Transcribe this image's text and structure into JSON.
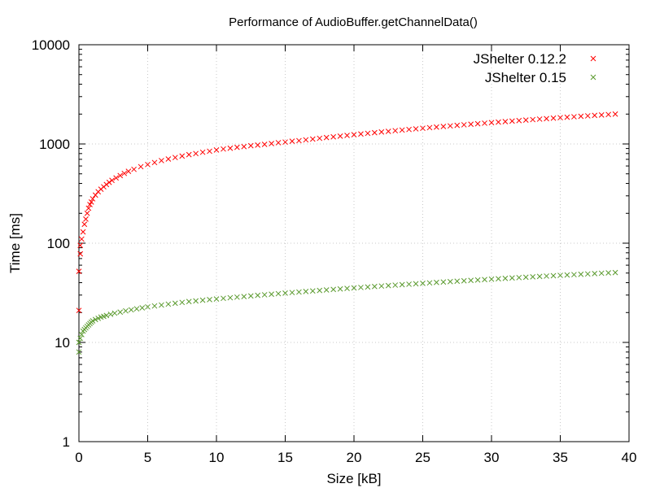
{
  "chart_data": {
    "type": "scatter",
    "title": "Performance of AudioBuffer.getChannelData()",
    "xlabel": "Size [kB]",
    "ylabel": "Time [ms]",
    "xlim": [
      0,
      40
    ],
    "ylim": [
      1,
      10000
    ],
    "yscale": "log",
    "grid": true,
    "legend": "top-right",
    "xticks": [
      "0",
      "5",
      "10",
      "15",
      "20",
      "25",
      "30",
      "35",
      "40"
    ],
    "yticks": [
      "1",
      "10",
      "100",
      "1000",
      "10000"
    ],
    "series": [
      {
        "name": "JShelter 0.12.2",
        "color": "#ff0000",
        "marker": "x",
        "points": [
          [
            0.0,
            21
          ],
          [
            0.0,
            52
          ],
          [
            0.1,
            78
          ],
          [
            0.1,
            95
          ],
          [
            0.2,
            110
          ],
          [
            0.3,
            130
          ],
          [
            0.4,
            155
          ],
          [
            0.5,
            175
          ],
          [
            0.6,
            200
          ],
          [
            0.7,
            225
          ],
          [
            0.8,
            245
          ],
          [
            0.9,
            260
          ],
          [
            1.0,
            280
          ],
          [
            1.2,
            305
          ],
          [
            1.4,
            330
          ],
          [
            1.6,
            350
          ],
          [
            1.8,
            370
          ],
          [
            2.0,
            390
          ],
          [
            2.2,
            410
          ],
          [
            2.4,
            430
          ],
          [
            2.7,
            455
          ],
          [
            3.0,
            480
          ],
          [
            3.3,
            505
          ],
          [
            3.6,
            530
          ],
          [
            4.0,
            555
          ],
          [
            4.5,
            590
          ],
          [
            5.0,
            620
          ],
          [
            5.5,
            650
          ],
          [
            6.0,
            680
          ],
          [
            6.5,
            705
          ],
          [
            7.0,
            730
          ],
          [
            7.5,
            755
          ],
          [
            8.0,
            780
          ],
          [
            8.5,
            800
          ],
          [
            9.0,
            825
          ],
          [
            9.5,
            845
          ],
          [
            10.0,
            870
          ],
          [
            10.5,
            890
          ],
          [
            11.0,
            905
          ],
          [
            11.5,
            925
          ],
          [
            12.0,
            940
          ],
          [
            12.5,
            960
          ],
          [
            13.0,
            975
          ],
          [
            13.5,
            990
          ],
          [
            14.0,
            1010
          ],
          [
            14.5,
            1030
          ],
          [
            15.0,
            1045
          ],
          [
            15.5,
            1065
          ],
          [
            16.0,
            1080
          ],
          [
            16.5,
            1100
          ],
          [
            17.0,
            1120
          ],
          [
            17.5,
            1140
          ],
          [
            18.0,
            1160
          ],
          [
            18.5,
            1180
          ],
          [
            19.0,
            1200
          ],
          [
            19.5,
            1220
          ],
          [
            20.0,
            1240
          ],
          [
            20.5,
            1260
          ],
          [
            21.0,
            1280
          ],
          [
            21.5,
            1300
          ],
          [
            22.0,
            1320
          ],
          [
            22.5,
            1340
          ],
          [
            23.0,
            1360
          ],
          [
            23.5,
            1380
          ],
          [
            24.0,
            1400
          ],
          [
            24.5,
            1420
          ],
          [
            25.0,
            1440
          ],
          [
            25.5,
            1460
          ],
          [
            26.0,
            1480
          ],
          [
            26.5,
            1500
          ],
          [
            27.0,
            1520
          ],
          [
            27.5,
            1540
          ],
          [
            28.0,
            1560
          ],
          [
            28.5,
            1580
          ],
          [
            29.0,
            1600
          ],
          [
            29.5,
            1620
          ],
          [
            30.0,
            1640
          ],
          [
            30.5,
            1660
          ],
          [
            31.0,
            1680
          ],
          [
            31.5,
            1700
          ],
          [
            32.0,
            1720
          ],
          [
            32.5,
            1740
          ],
          [
            33.0,
            1760
          ],
          [
            33.5,
            1780
          ],
          [
            34.0,
            1800
          ],
          [
            34.5,
            1820
          ],
          [
            35.0,
            1840
          ],
          [
            35.5,
            1860
          ],
          [
            36.0,
            1880
          ],
          [
            36.5,
            1900
          ],
          [
            37.0,
            1920
          ],
          [
            37.5,
            1940
          ],
          [
            38.0,
            1960
          ],
          [
            38.5,
            1980
          ],
          [
            39.0,
            2000
          ]
        ]
      },
      {
        "name": "JShelter 0.15",
        "color": "#5a9a2e",
        "marker": "x",
        "points": [
          [
            0.0,
            8
          ],
          [
            0.0,
            10
          ],
          [
            0.1,
            11
          ],
          [
            0.2,
            12
          ],
          [
            0.3,
            13
          ],
          [
            0.4,
            13.5
          ],
          [
            0.5,
            14
          ],
          [
            0.6,
            14.5
          ],
          [
            0.7,
            15
          ],
          [
            0.8,
            15.5
          ],
          [
            0.9,
            16
          ],
          [
            1.0,
            16.5
          ],
          [
            1.2,
            17
          ],
          [
            1.4,
            17.5
          ],
          [
            1.6,
            18
          ],
          [
            1.8,
            18.3
          ],
          [
            2.0,
            18.7
          ],
          [
            2.3,
            19.2
          ],
          [
            2.6,
            19.7
          ],
          [
            3.0,
            20.2
          ],
          [
            3.4,
            20.8
          ],
          [
            3.8,
            21.3
          ],
          [
            4.2,
            21.8
          ],
          [
            4.6,
            22.3
          ],
          [
            5.0,
            22.8
          ],
          [
            5.5,
            23.3
          ],
          [
            6.0,
            23.8
          ],
          [
            6.5,
            24.3
          ],
          [
            7.0,
            24.8
          ],
          [
            7.5,
            25.3
          ],
          [
            8.0,
            25.8
          ],
          [
            8.5,
            26.2
          ],
          [
            9.0,
            26.6
          ],
          [
            9.5,
            27
          ],
          [
            10.0,
            27.4
          ],
          [
            10.5,
            27.8
          ],
          [
            11.0,
            28.2
          ],
          [
            11.5,
            28.6
          ],
          [
            12.0,
            29
          ],
          [
            12.5,
            29.4
          ],
          [
            13.0,
            29.8
          ],
          [
            13.5,
            30.2
          ],
          [
            14.0,
            30.6
          ],
          [
            14.5,
            31
          ],
          [
            15.0,
            31.4
          ],
          [
            15.5,
            31.8
          ],
          [
            16.0,
            32.2
          ],
          [
            16.5,
            32.6
          ],
          [
            17.0,
            33
          ],
          [
            17.5,
            33.4
          ],
          [
            18.0,
            33.8
          ],
          [
            18.5,
            34.2
          ],
          [
            19.0,
            34.6
          ],
          [
            19.5,
            35
          ],
          [
            20.0,
            35.4
          ],
          [
            20.5,
            35.8
          ],
          [
            21.0,
            36.2
          ],
          [
            21.5,
            36.6
          ],
          [
            22.0,
            37
          ],
          [
            22.5,
            37.4
          ],
          [
            23.0,
            37.8
          ],
          [
            23.5,
            38.2
          ],
          [
            24.0,
            38.6
          ],
          [
            24.5,
            39
          ],
          [
            25.0,
            39.4
          ],
          [
            25.5,
            39.8
          ],
          [
            26.0,
            40.2
          ],
          [
            26.5,
            40.6
          ],
          [
            27.0,
            41
          ],
          [
            27.5,
            41.4
          ],
          [
            28.0,
            41.8
          ],
          [
            28.5,
            42.2
          ],
          [
            29.0,
            42.6
          ],
          [
            29.5,
            43
          ],
          [
            30.0,
            43.4
          ],
          [
            30.5,
            43.8
          ],
          [
            31.0,
            44.2
          ],
          [
            31.5,
            44.6
          ],
          [
            32.0,
            45
          ],
          [
            32.5,
            45.4
          ],
          [
            33.0,
            45.8
          ],
          [
            33.5,
            46.2
          ],
          [
            34.0,
            46.6
          ],
          [
            34.5,
            47
          ],
          [
            35.0,
            47.4
          ],
          [
            35.5,
            47.8
          ],
          [
            36.0,
            48.2
          ],
          [
            36.5,
            48.6
          ],
          [
            37.0,
            49
          ],
          [
            37.5,
            49.4
          ],
          [
            38.0,
            49.8
          ],
          [
            38.5,
            50.2
          ],
          [
            39.0,
            50.6
          ]
        ]
      }
    ]
  }
}
